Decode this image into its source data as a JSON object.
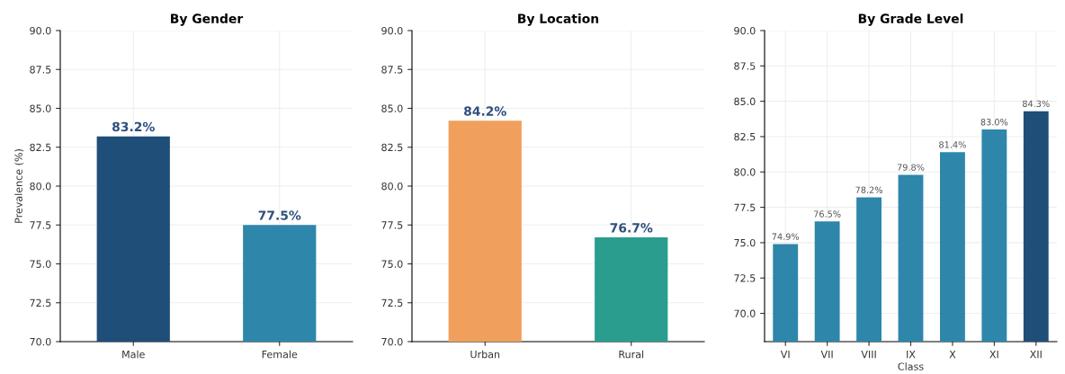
{
  "chart_data": [
    {
      "type": "bar",
      "title": "By Gender",
      "ylabel": "Prevalence (%)",
      "categories": [
        "Male",
        "Female"
      ],
      "values": [
        83.2,
        77.5
      ],
      "colors": [
        "#1f4e79",
        "#2e86ab"
      ],
      "value_labels": [
        "83.2%",
        "77.5%"
      ],
      "ylim": [
        70,
        90
      ],
      "yticks": [
        {
          "value": 70,
          "label": "70.0"
        },
        72.5,
        {
          "value": 75,
          "label": "75.0"
        },
        77.5,
        {
          "value": 80,
          "label": "80.0"
        },
        82.5,
        {
          "value": 85,
          "label": "85.0"
        },
        87.5,
        {
          "value": 90,
          "label": "90.0"
        }
      ],
      "grid": true
    },
    {
      "type": "bar",
      "title": "By Location",
      "categories": [
        "Urban",
        "Rural"
      ],
      "values": [
        84.2,
        76.7
      ],
      "colors": [
        "#f0a05c",
        "#2a9d8f"
      ],
      "value_labels": [
        "84.2%",
        "76.7%"
      ],
      "ylim": [
        70,
        90
      ],
      "yticks": [
        {
          "value": 70,
          "label": "70.0"
        },
        72.5,
        {
          "value": 75,
          "label": "75.0"
        },
        77.5,
        {
          "value": 80,
          "label": "80.0"
        },
        82.5,
        {
          "value": 85,
          "label": "85.0"
        },
        87.5,
        {
          "value": 90,
          "label": "90.0"
        }
      ],
      "grid": true
    },
    {
      "type": "bar",
      "title": "By Grade Level",
      "xlabel": "Class",
      "categories": [
        "VI",
        "VII",
        "VIII",
        "IX",
        "X",
        "XI",
        "XII"
      ],
      "values": [
        74.9,
        76.5,
        78.2,
        79.8,
        81.4,
        83.0,
        84.3
      ],
      "colors": [
        "#2e86ab",
        "#2e86ab",
        "#2e86ab",
        "#2e86ab",
        "#2e86ab",
        "#2e86ab",
        "#1f4e79"
      ],
      "value_labels": [
        "74.9%",
        "76.5%",
        "78.2%",
        "79.8%",
        "81.4%",
        "83.0%",
        "84.3%"
      ],
      "ylim": [
        68,
        90
      ],
      "yticks": [
        {
          "value": 70,
          "label": "70.0"
        },
        72.5,
        {
          "value": 75,
          "label": "75.0"
        },
        77.5,
        {
          "value": 80,
          "label": "80.0"
        },
        82.5,
        {
          "value": 85,
          "label": "85.0"
        },
        87.5,
        {
          "value": 90,
          "label": "90.0"
        }
      ],
      "grid": true
    }
  ]
}
